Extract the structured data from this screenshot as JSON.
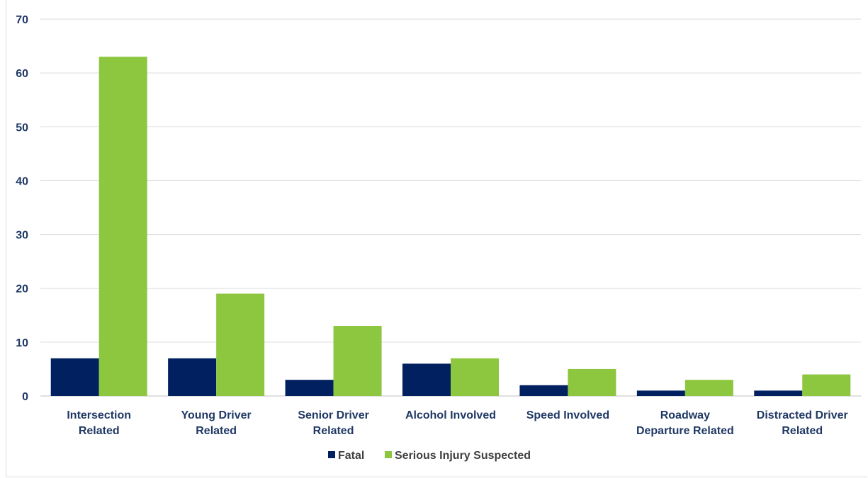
{
  "chart_data": {
    "type": "bar",
    "categories": [
      [
        "Intersection",
        "Related"
      ],
      [
        "Young Driver",
        "Related"
      ],
      [
        "Senior Driver",
        "Related"
      ],
      [
        "Alcohol Involved"
      ],
      [
        "Speed Involved"
      ],
      [
        "Roadway",
        "Departure Related"
      ],
      [
        "Distracted Driver",
        "Related"
      ]
    ],
    "series": [
      {
        "name": "Fatal",
        "values": [
          7,
          7,
          3,
          6,
          2,
          1,
          1
        ]
      },
      {
        "name": "Serious Injury Suspected",
        "values": [
          63,
          19,
          13,
          7,
          5,
          3,
          4
        ]
      }
    ],
    "ylim": [
      0,
      70
    ],
    "yticks": [
      0,
      10,
      20,
      30,
      40,
      50,
      60,
      70
    ],
    "grid": true,
    "legend": "bottom",
    "colors": {
      "Fatal": "#002060",
      "Serious Injury Suspected": "#8DC63F",
      "text": "#1F3864",
      "grid": "#d9d9d9"
    }
  }
}
